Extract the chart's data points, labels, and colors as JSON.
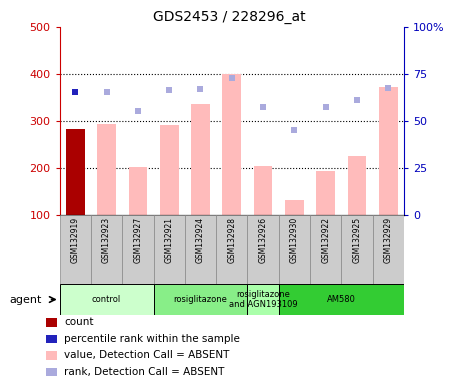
{
  "title": "GDS2453 / 228296_at",
  "samples": [
    "GSM132919",
    "GSM132923",
    "GSM132927",
    "GSM132921",
    "GSM132924",
    "GSM132928",
    "GSM132926",
    "GSM132930",
    "GSM132922",
    "GSM132925",
    "GSM132929"
  ],
  "bar_values": [
    283,
    293,
    202,
    291,
    336,
    400,
    204,
    133,
    194,
    226,
    372
  ],
  "bar_colors": [
    "#aa0000",
    "#ffbbbb",
    "#ffbbbb",
    "#ffbbbb",
    "#ffbbbb",
    "#ffbbbb",
    "#ffbbbb",
    "#ffbbbb",
    "#ffbbbb",
    "#ffbbbb",
    "#ffbbbb"
  ],
  "rank_dots": [
    362,
    362,
    321,
    366,
    369,
    392,
    329,
    281,
    330,
    344,
    370
  ],
  "rank_dot_colors": [
    "#2222bb",
    "#aaaadd",
    "#aaaadd",
    "#aaaadd",
    "#aaaadd",
    "#aaaadd",
    "#aaaadd",
    "#aaaadd",
    "#aaaadd",
    "#aaaadd",
    "#aaaadd"
  ],
  "ylim_left": [
    100,
    500
  ],
  "ylim_right": [
    0,
    100
  ],
  "yticks_left": [
    100,
    200,
    300,
    400,
    500
  ],
  "yticks_right": [
    0,
    25,
    50,
    75,
    100
  ],
  "ytick_labels_right": [
    "0",
    "25",
    "50",
    "75",
    "100%"
  ],
  "hgrid_lines": [
    200,
    300,
    400
  ],
  "agent_groups": [
    {
      "label": "control",
      "start": 0,
      "end": 2,
      "color": "#ccffcc"
    },
    {
      "label": "rosiglitazone",
      "start": 3,
      "end": 5,
      "color": "#88ee88"
    },
    {
      "label": "rosiglitazone\nand AGN193109",
      "start": 6,
      "end": 6,
      "color": "#aaffaa"
    },
    {
      "label": "AM580",
      "start": 7,
      "end": 10,
      "color": "#33cc33"
    }
  ],
  "legend_items": [
    {
      "color": "#aa0000",
      "label": "count"
    },
    {
      "color": "#2222bb",
      "label": "percentile rank within the sample"
    },
    {
      "color": "#ffbbbb",
      "label": "value, Detection Call = ABSENT"
    },
    {
      "color": "#aaaadd",
      "label": "rank, Detection Call = ABSENT"
    }
  ],
  "agent_label": "agent",
  "left_tick_color": "#cc0000",
  "right_tick_color": "#0000bb",
  "bar_width": 0.6,
  "dot_size": 5,
  "sample_box_color": "#cccccc",
  "sample_box_edge": "#888888"
}
